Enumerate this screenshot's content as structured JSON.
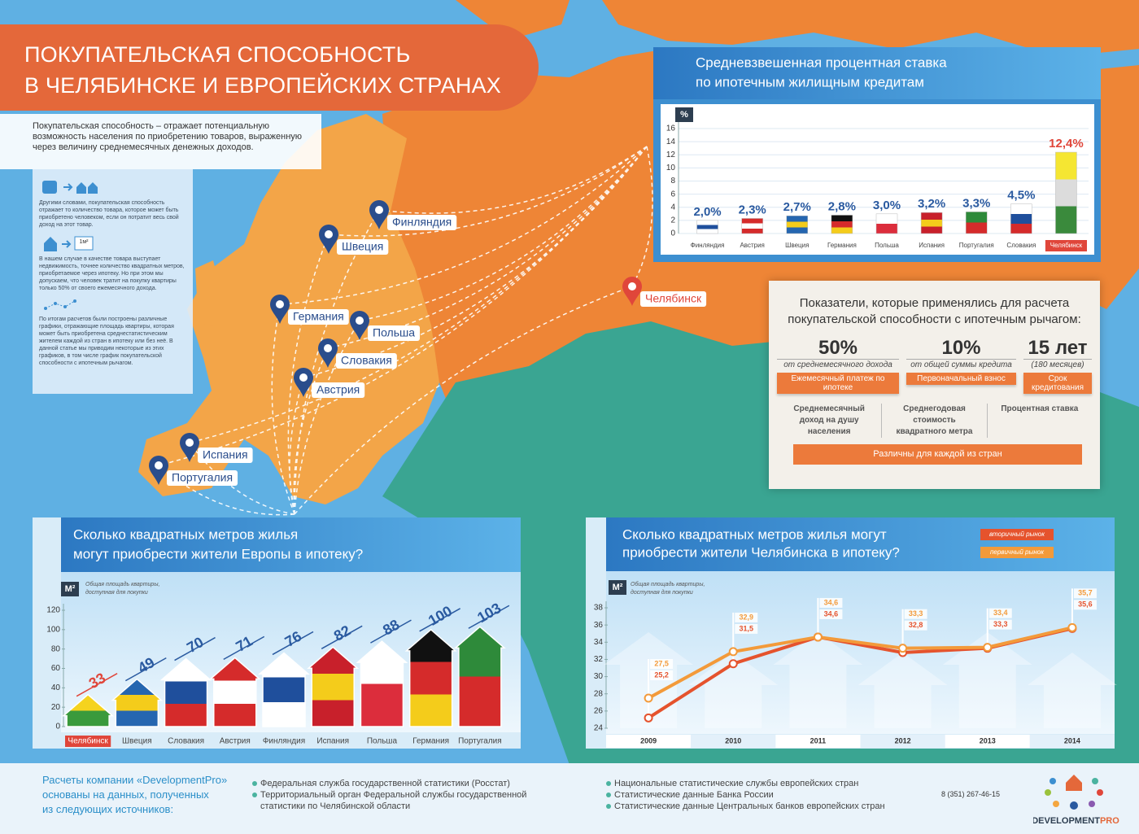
{
  "header": {
    "title": [
      "ПОКУПАТЕЛЬСКАЯ СПОСОБНОСТЬ",
      "В ЧЕЛЯБИНСКЕ И ЕВРОПЕЙСКИХ СТРАНАХ"
    ]
  },
  "intro": "Покупательская способность – отражает потенциальную возможность населения по приобретению товаров, выраженную через величину среднемесячных денежных доходов.",
  "sidebar": {
    "icon_label": "1м²",
    "paragraphs": [
      "Другими словами, покупательская способность отражает то количество товара, которое может быть приобретено человеком, если он потратит весь свой доход на этот товар.",
      "В нашем случае в качестве товара выступает недвижимость, точнее количество квадратных метров, приобретаемое через ипотеку. Но при этом мы допускаем, что человек тратит на покупку квартиры только 50% от своего ежемесячного дохода.",
      "По итогам расчетов были построены различные графики, отражающие площадь квартиры, которая может быть приобретена среднестатистическим жителем каждой из стран в ипотеку или без неё. В данной статье мы приводим некоторые из этих графиков, в том числе график покупательской способности с ипотечным рычагом."
    ]
  },
  "map": {
    "places": [
      "Финляндия",
      "Швеция",
      "Германия",
      "Польша",
      "Словакия",
      "Австрия",
      "Испания",
      "Португалия",
      "Челябинск"
    ]
  },
  "indicators": {
    "title": "Показатели, которые применялись для расчета покупательской способности с ипотечным рычагом:",
    "stats": [
      {
        "value": "50%",
        "note": "от среднемесячного дохода",
        "label": "Ежемесячный платеж по ипотеке"
      },
      {
        "value": "10%",
        "note": "от общей суммы кредита",
        "label": "Первоначальный взнос"
      },
      {
        "value": "15 лет",
        "note": "(180 месяцев)",
        "label": "Срок кредитования"
      }
    ],
    "factors": [
      "Среднемесячный доход на душу населения",
      "Среднегодовая стоимость квадратного метра",
      "Процентная ставка"
    ],
    "factors_note": "Различны для каждой из стран"
  },
  "chart_data": [
    {
      "type": "bar",
      "title": [
        "Средневзвешенная процентная ставка",
        "по ипотечным жилищным кредитам"
      ],
      "y_unit": "%",
      "categories": [
        "Финляндия",
        "Австрия",
        "Швеция",
        "Германия",
        "Польша",
        "Испания",
        "Португалия",
        "Словакия",
        "Челябинск"
      ],
      "values": [
        2.0,
        2.3,
        2.7,
        2.8,
        3.0,
        3.2,
        3.3,
        4.5,
        12.4
      ],
      "value_labels": [
        "2,0%",
        "2,3%",
        "2,7%",
        "2,8%",
        "3,0%",
        "3,2%",
        "3,3%",
        "4,5%",
        "12,4%"
      ],
      "colors": [
        [
          "#ffffff",
          "#1f4f9c",
          "#ffffff"
        ],
        [
          "#d52b2b",
          "#ffffff",
          "#d52b2b"
        ],
        [
          "#2566b0",
          "#f4cc1b",
          "#2566b0"
        ],
        [
          "#111111",
          "#d52b2b",
          "#f4cc1b"
        ],
        [
          "#ffffff",
          "#dc2d3c"
        ],
        [
          "#c8202b",
          "#f4cc1b",
          "#c8202b"
        ],
        [
          "#2e8a3a",
          "#d52b2b"
        ],
        [
          "#ffffff",
          "#1f4f9c",
          "#d52b2b"
        ],
        [
          "#f5e632",
          "#dcdcdc",
          "#3a8a3c"
        ]
      ],
      "label_colors": [
        "#2a5aa0",
        "#2a5aa0",
        "#2a5aa0",
        "#2a5aa0",
        "#2a5aa0",
        "#2a5aa0",
        "#2a5aa0",
        "#2a5aa0",
        "#e0463a"
      ],
      "category_fills": [
        "none",
        "none",
        "none",
        "none",
        "none",
        "none",
        "none",
        "none",
        "#e0463a"
      ],
      "ylim": [
        0,
        16
      ],
      "yticks": [
        0,
        2,
        4,
        6,
        8,
        10,
        12,
        14,
        16
      ],
      "grid": true
    },
    {
      "type": "bar",
      "title": [
        "Сколько квадратных метров жилья",
        "могут приобрести жители Европы в ипотеку?"
      ],
      "y_unit": "М²",
      "note": [
        "Общая площадь квартиры,",
        "доступная для покупки"
      ],
      "categories": [
        "Челябинск",
        "Швеция",
        "Словакия",
        "Австрия",
        "Финляндия",
        "Испания",
        "Польша",
        "Германия",
        "Португалия"
      ],
      "values": [
        33,
        49,
        70,
        71,
        76,
        82,
        88,
        100,
        103
      ],
      "colors": [
        [
          "#f5d31e",
          "#3a9a3c"
        ],
        [
          "#2566b0",
          "#f4cc1b",
          "#2566b0"
        ],
        [
          "#ffffff",
          "#1f4f9c",
          "#d52b2b"
        ],
        [
          "#d52b2b",
          "#ffffff",
          "#d52b2b"
        ],
        [
          "#ffffff",
          "#1f4f9c",
          "#ffffff"
        ],
        [
          "#c8202b",
          "#f4cc1b",
          "#c8202b"
        ],
        [
          "#ffffff",
          "#dc2d3c"
        ],
        [
          "#111111",
          "#d52b2b",
          "#f4cc1b"
        ],
        [
          "#2e8a3a",
          "#d52b2b"
        ]
      ],
      "label_colors": [
        "#e0463a",
        "#2a5aa0",
        "#2a5aa0",
        "#2a5aa0",
        "#2a5aa0",
        "#2a5aa0",
        "#2a5aa0",
        "#2a5aa0",
        "#2a5aa0"
      ],
      "category_fills": [
        "#e0463a",
        "none",
        "none",
        "none",
        "none",
        "none",
        "none",
        "none",
        "none"
      ],
      "ylim": [
        0,
        120
      ],
      "yticks": [
        0,
        20,
        40,
        60,
        80,
        100,
        120
      ]
    },
    {
      "type": "line",
      "title": [
        "Сколько квадратных метров жилья могут",
        "приобрести жители Челябинска в ипотеку?"
      ],
      "y_unit": "М²",
      "note": [
        "Общая площадь квартиры,",
        "доступная для покупки"
      ],
      "categories": [
        "2009",
        "2010",
        "2011",
        "2012",
        "2013",
        "2014"
      ],
      "series": [
        {
          "name": "вторичный рынок",
          "color": "#e5532d",
          "values": [
            25.2,
            31.5,
            34.6,
            32.8,
            33.3,
            35.6
          ],
          "value_labels": [
            "25,2",
            "31,5",
            "34,6",
            "32,8",
            "33,3",
            "35,6"
          ]
        },
        {
          "name": "первичный рынок",
          "color": "#f39a3a",
          "values": [
            27.5,
            32.9,
            34.6,
            33.3,
            33.4,
            35.7
          ],
          "value_labels": [
            "27,5",
            "32,9",
            "34,6",
            "33,3",
            "33,4",
            "35,7"
          ]
        }
      ],
      "ylim": [
        24,
        38
      ],
      "yticks": [
        24,
        26,
        28,
        30,
        32,
        34,
        36,
        38
      ]
    }
  ],
  "footer": {
    "lead": [
      "Расчеты компании «DevelopmentPro»",
      "основаны на данных, полученных",
      "из следующих источников:"
    ],
    "sources": [
      [
        "Федеральная служба государственной статистики (Росстат)",
        "Территориальный орган Федеральной службы государственной статистики по Челябинской области"
      ],
      [
        "Национальные статистические службы европейских стран",
        "Статистические данные Банка России",
        "Статистические данные Центральных банков европейских стран"
      ]
    ],
    "phone": "8 (351) 267-46-15",
    "logo": [
      "DEVELOPMENT",
      "PRO"
    ]
  }
}
